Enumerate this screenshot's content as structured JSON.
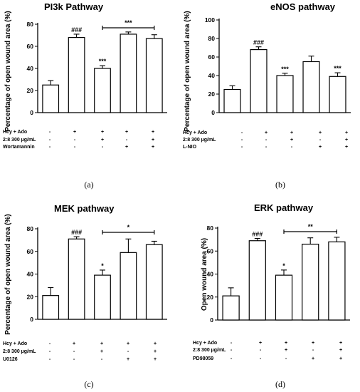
{
  "chart_data": [
    {
      "type": "bar",
      "title": "PI3k Pathway",
      "ylabel": "Percentage of open wound area (%)",
      "ylim": [
        0,
        80
      ],
      "yticks": [
        "0",
        "20",
        "40",
        "60",
        "80"
      ],
      "values": [
        25,
        68,
        40,
        71,
        67
      ],
      "errors": [
        4,
        3,
        2.5,
        2,
        3.5
      ],
      "sig_labels": [
        "",
        "###",
        "***",
        "",
        ""
      ],
      "bracket": {
        "from": 2,
        "to": 4,
        "label": "***"
      },
      "rows": [
        {
          "label": "Hcy + Ado",
          "marks": [
            "-",
            "+",
            "+",
            "+",
            "+"
          ]
        },
        {
          "label": "2:8 300 µg/mL",
          "marks": [
            "-",
            "-",
            "+",
            "-",
            "+"
          ]
        },
        {
          "label": "Wortamannin",
          "marks": [
            "-",
            "-",
            "-",
            "+",
            "+"
          ]
        }
      ],
      "caption": "(a)"
    },
    {
      "type": "bar",
      "title": "eNOS pathway",
      "ylabel": "Percentage of open wound area (%)",
      "ylim": [
        0,
        100
      ],
      "yticks": [
        "0",
        "20",
        "40",
        "60",
        "80",
        "100"
      ],
      "values": [
        25,
        68,
        40,
        55,
        39
      ],
      "errors": [
        4,
        3,
        2.5,
        6,
        4
      ],
      "sig_labels": [
        "",
        "###",
        "***",
        "",
        "***"
      ],
      "bracket": null,
      "rows": [
        {
          "label": "Hcy + Ado",
          "marks": [
            "-",
            "+",
            "+",
            "+",
            "+"
          ]
        },
        {
          "label": "2:8 300 µg/mL",
          "marks": [
            "-",
            "-",
            "+",
            "-",
            "+"
          ]
        },
        {
          "label": "L-NIO",
          "marks": [
            "-",
            "-",
            "-",
            "+",
            "+"
          ]
        }
      ],
      "caption": "(b)"
    },
    {
      "type": "bar",
      "title": "MEK pathway",
      "ylabel": "Percentage of open wound area (%)",
      "ylim": [
        0,
        80
      ],
      "yticks": [
        "0",
        "20",
        "40",
        "60",
        "80"
      ],
      "values": [
        21,
        71,
        39,
        59,
        66
      ],
      "errors": [
        7,
        2,
        4.5,
        12,
        3
      ],
      "sig_labels": [
        "",
        "###",
        "*",
        "",
        ""
      ],
      "bracket": {
        "from": 2,
        "to": 4,
        "label": "*"
      },
      "rows": [
        {
          "label": "Hcy + Ado",
          "marks": [
            "-",
            "+",
            "+",
            "+",
            "+"
          ]
        },
        {
          "label": "2:8 300 µg/mL",
          "marks": [
            "-",
            "-",
            "+",
            "-",
            "+"
          ]
        },
        {
          "label": "U0126",
          "marks": [
            "-",
            "-",
            "-",
            "+",
            "+"
          ]
        }
      ],
      "caption": "(c)"
    },
    {
      "type": "bar",
      "title": "ERK pathway",
      "ylabel": "Open wound area (%)",
      "ylim": [
        0,
        80
      ],
      "yticks": [
        "0",
        "20",
        "40",
        "60",
        "80"
      ],
      "values": [
        21,
        69,
        39,
        66,
        68
      ],
      "errors": [
        7,
        2,
        4.5,
        5.5,
        4
      ],
      "sig_labels": [
        "",
        "###",
        "*",
        "",
        ""
      ],
      "bracket": {
        "from": 2,
        "to": 4,
        "label": "**"
      },
      "rows": [
        {
          "label": "Hcy + Ado",
          "marks": [
            "-",
            "+",
            "+",
            "+",
            "+"
          ]
        },
        {
          "label": "2:8 300 µg/mL",
          "marks": [
            "-",
            "-",
            "+",
            "-",
            "+"
          ]
        },
        {
          "label": "PD98059",
          "marks": [
            "-",
            "-",
            "-",
            "+",
            "+"
          ]
        }
      ],
      "caption": "(d)"
    }
  ]
}
